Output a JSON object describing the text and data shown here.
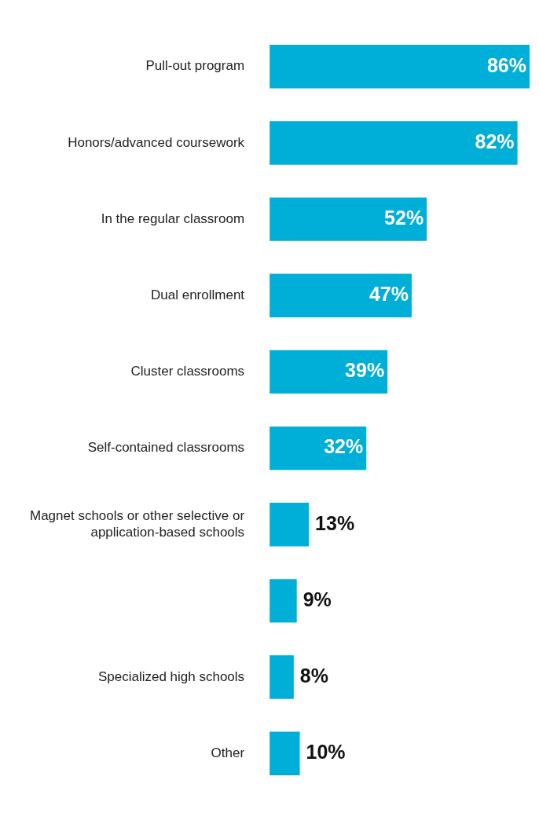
{
  "chart_data": {
    "type": "bar",
    "orientation": "horizontal",
    "categories": [
      "Pull-out program",
      "Honors/advanced coursework",
      "In the regular classroom",
      "Dual enrollment",
      "Cluster classrooms",
      "Self-contained classrooms",
      "Magnet schools or other selective or application-based schools",
      null,
      "Specialized high schools",
      "Other"
    ],
    "values": [
      86,
      82,
      52,
      47,
      39,
      32,
      13,
      9,
      8,
      10
    ],
    "color": "#00afd8",
    "data_labels": true,
    "value_labels": [
      "86%",
      "82%",
      "52%",
      "47%",
      "39%",
      "32%",
      "13%",
      "9%",
      "8%",
      "10%"
    ],
    "legend": false
  }
}
